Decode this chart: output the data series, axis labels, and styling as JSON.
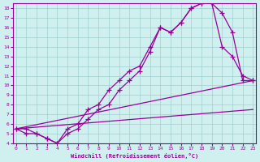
{
  "xlabel": "Windchill (Refroidissement éolien,°C)",
  "bg_color": "#d0f0f0",
  "grid_color": "#a0d0d0",
  "line_color": "#990099",
  "xlim": [
    0,
    23
  ],
  "ylim": [
    4,
    18.5
  ],
  "xtick_labels": [
    "0",
    "1",
    "2",
    "3",
    "4",
    "5",
    "6",
    "7",
    "8",
    "9",
    "10",
    "11",
    "12",
    "13",
    "14",
    "15",
    "16",
    "17",
    "18",
    "19",
    "20",
    "21",
    "22",
    "23"
  ],
  "ytick_labels": [
    "4",
    "5",
    "6",
    "7",
    "8",
    "9",
    "10",
    "11",
    "12",
    "13",
    "14",
    "15",
    "16",
    "17",
    "18"
  ],
  "line1": {
    "x": [
      0,
      1,
      2,
      3,
      4,
      5,
      6,
      7,
      8,
      9,
      10,
      11,
      12,
      13,
      14,
      15,
      16,
      17,
      18,
      19,
      20,
      21,
      22,
      23
    ],
    "y": [
      5.5,
      5.5,
      5.0,
      4.5,
      4.0,
      5.5,
      6.0,
      7.5,
      8.0,
      9.5,
      10.5,
      11.5,
      12.0,
      14.0,
      16.0,
      15.5,
      16.5,
      18.0,
      18.5,
      18.5,
      17.5,
      15.5,
      10.5,
      10.5
    ]
  },
  "line2": {
    "x": [
      0,
      1,
      2,
      3,
      4,
      5,
      6,
      7,
      8,
      9,
      10,
      11,
      12,
      13,
      14,
      15,
      16,
      17,
      18,
      19,
      20,
      21,
      22,
      23
    ],
    "y": [
      5.5,
      5.0,
      5.0,
      4.5,
      4.0,
      5.0,
      5.5,
      6.5,
      7.5,
      8.0,
      9.5,
      10.5,
      11.5,
      13.5,
      16.0,
      15.5,
      16.5,
      18.0,
      18.5,
      18.5,
      14.0,
      13.0,
      11.0,
      10.5
    ]
  },
  "line3": {
    "x": [
      0,
      23
    ],
    "y": [
      5.5,
      10.5
    ]
  },
  "line4": {
    "x": [
      0,
      23
    ],
    "y": [
      5.5,
      7.5
    ]
  }
}
